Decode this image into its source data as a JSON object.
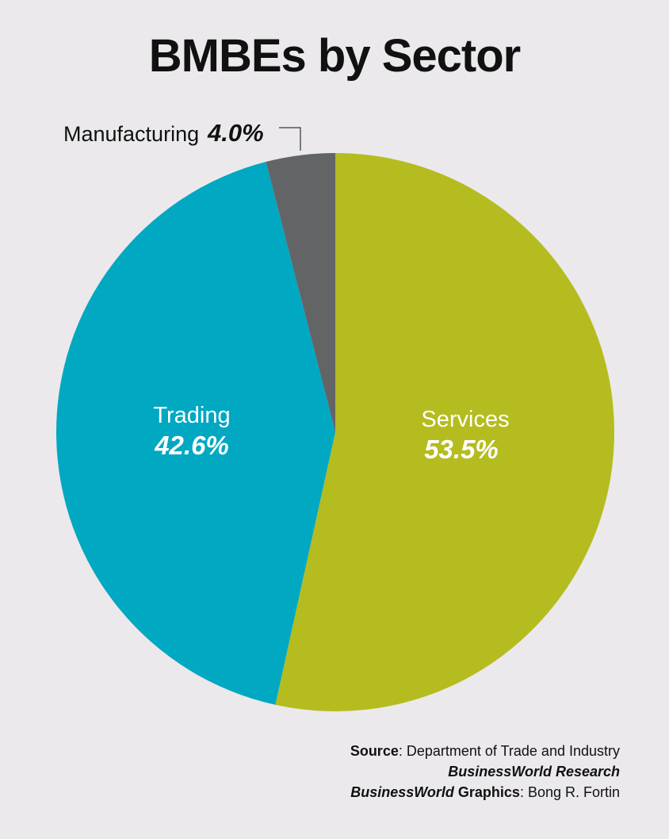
{
  "chart_data": {
    "type": "pie",
    "title": "BMBEs by Sector",
    "slices": [
      {
        "label": "Services",
        "value": 53.5,
        "display": "53.5%",
        "color": "#b5bc1f"
      },
      {
        "label": "Trading",
        "value": 42.6,
        "display": "42.6%",
        "color": "#00a8c2"
      },
      {
        "label": "Manufacturing",
        "value": 4.0,
        "display": "4.0%",
        "color": "#636466"
      }
    ]
  },
  "credits": {
    "source_label": "Source",
    "source_text": ": Department of Trade and Industry",
    "research": "BusinessWorld Research",
    "graphics_brand": "BusinessWorld",
    "graphics_label": " Graphics",
    "graphics_text": ": Bong R. Fortin"
  }
}
